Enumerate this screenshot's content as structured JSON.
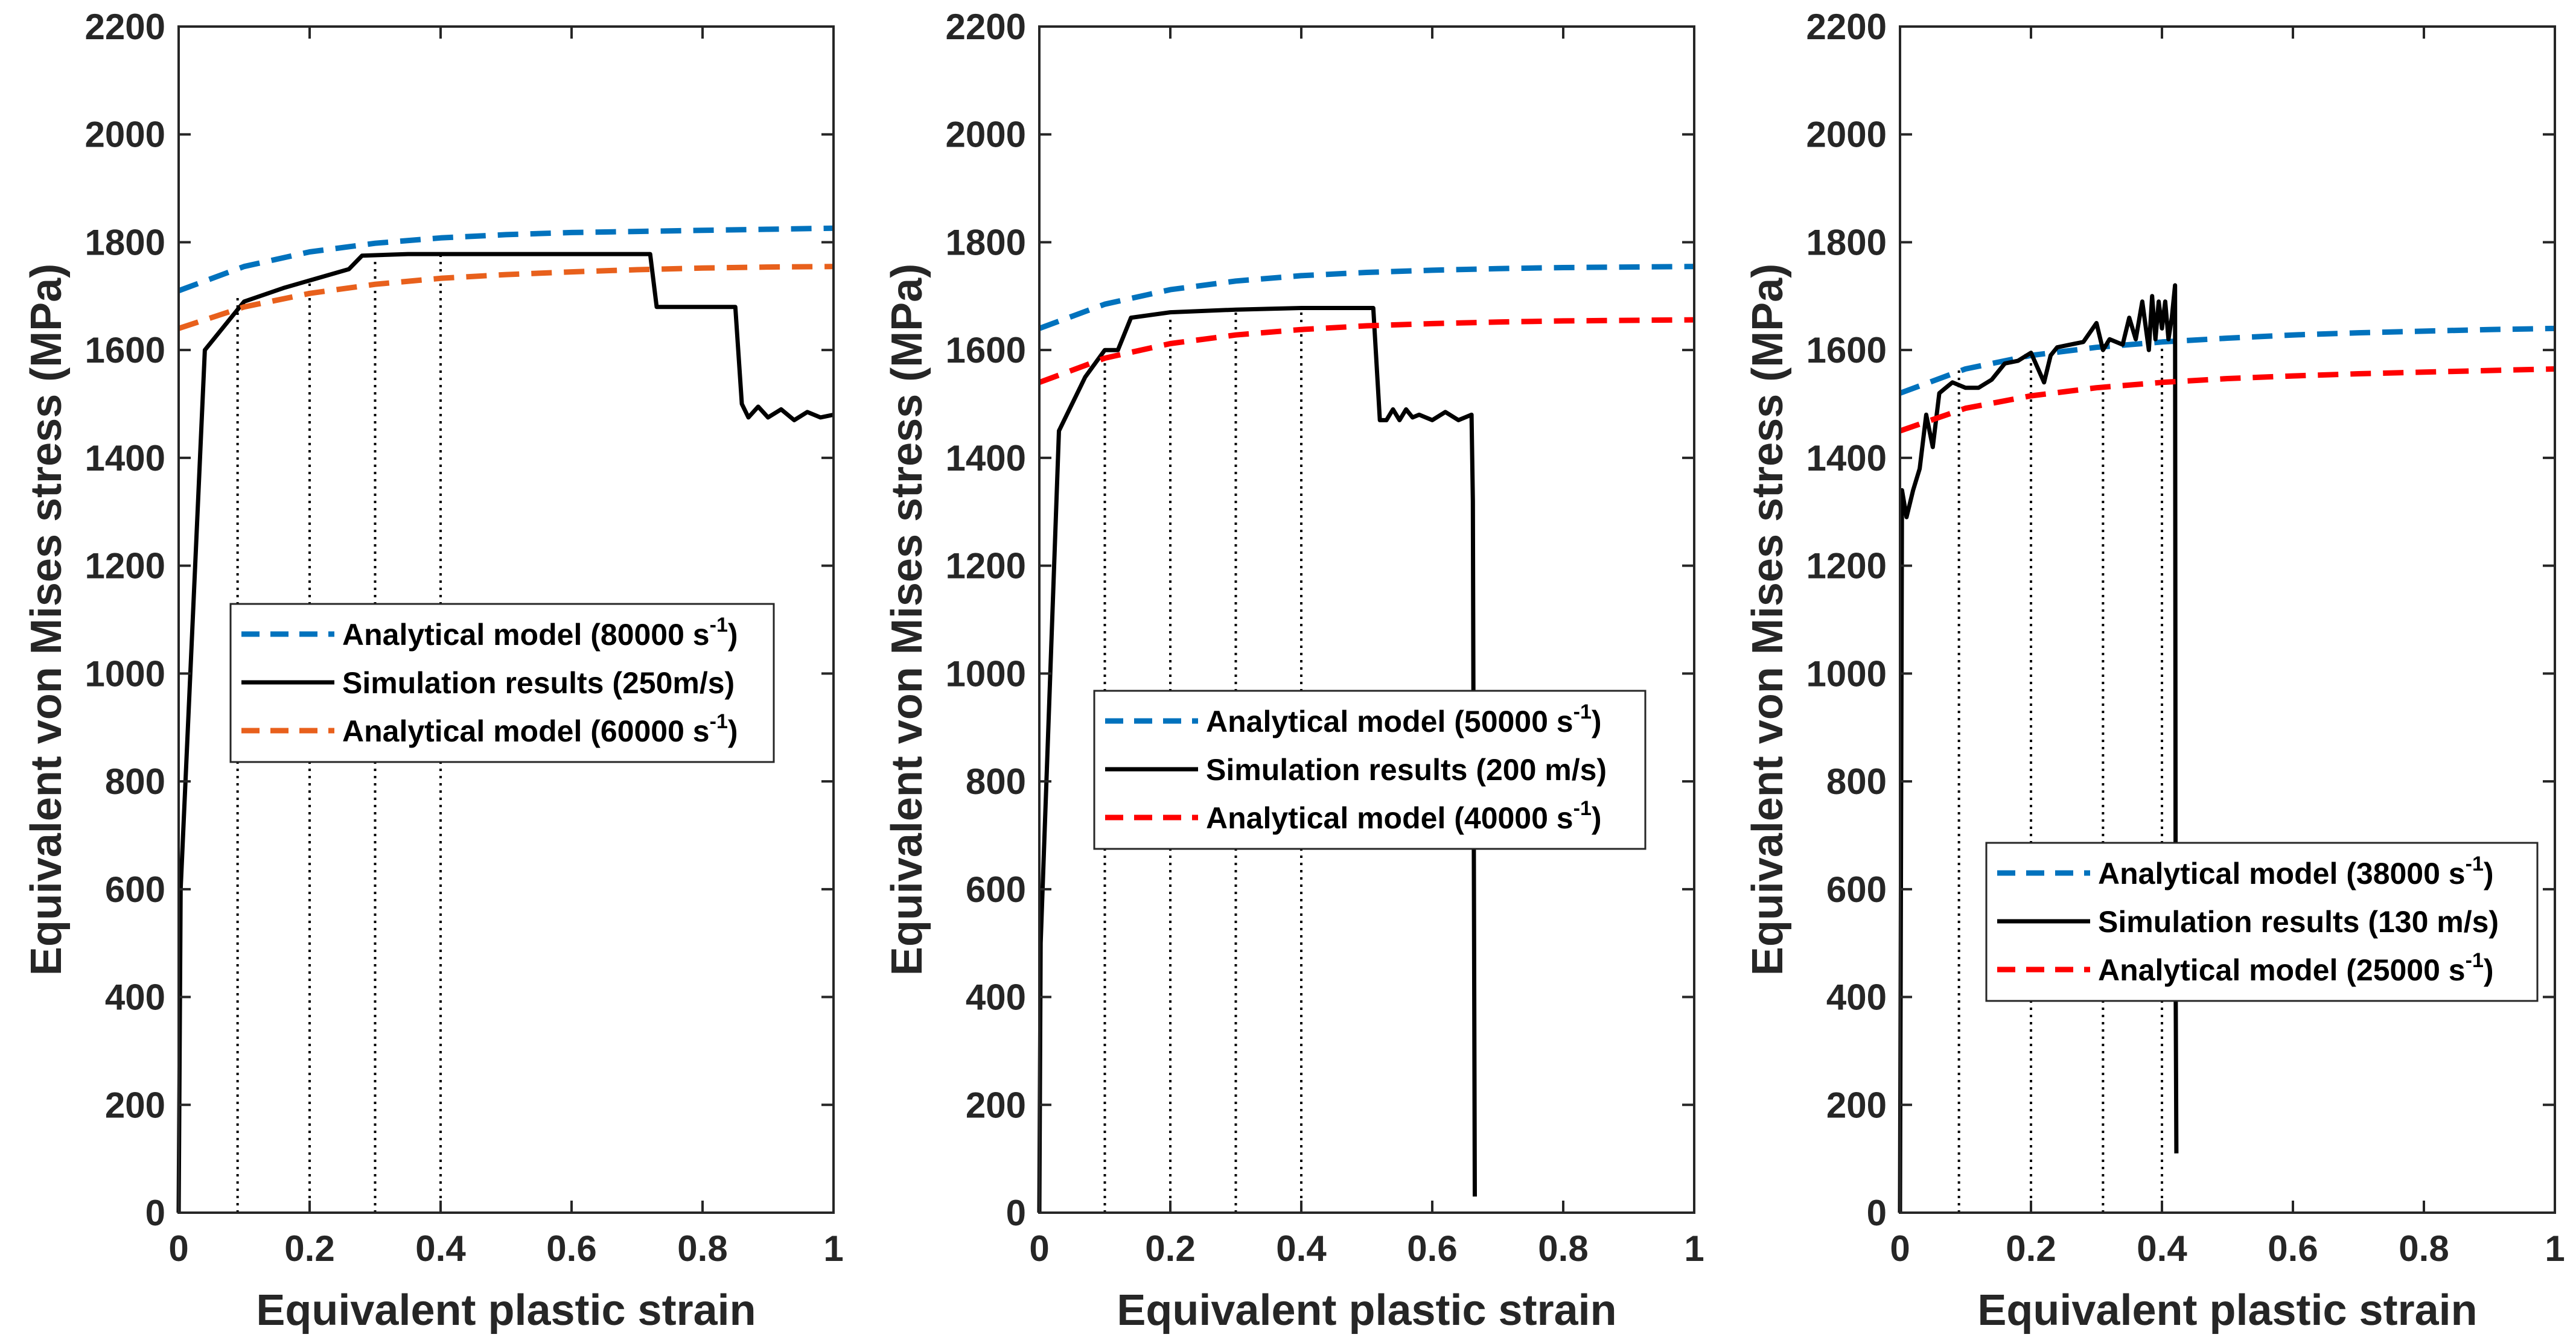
{
  "colors": {
    "blue": "#0072BD",
    "orange": "#E8601C",
    "red": "#FF0000",
    "black": "#000000"
  },
  "chart_data": [
    {
      "type": "line",
      "xlabel": "Equivalent plastic strain",
      "ylabel": "Equivalent von Mises stress (MPa)",
      "xlim": [
        0,
        1
      ],
      "ylim": [
        0,
        2200
      ],
      "xticks": [
        0,
        0.2,
        0.4,
        0.6,
        0.8,
        1
      ],
      "xtick_labels": [
        "0",
        "0.2",
        "0.4",
        "0.6",
        "0.8",
        "1"
      ],
      "yticks": [
        0,
        200,
        400,
        600,
        800,
        1000,
        1200,
        1400,
        1600,
        1800,
        2000,
        2200
      ],
      "ytick_labels": [
        "0",
        "200",
        "400",
        "600",
        "800",
        "1000",
        "1200",
        "1400",
        "1600",
        "1800",
        "2000",
        "2200"
      ],
      "legend_position": "center-left",
      "series": [
        {
          "name": "Analytical model (80000 s",
          "sup": "-1",
          "close": ")",
          "style": "dashed",
          "color": "blue",
          "x": [
            0,
            0.1,
            0.2,
            0.3,
            0.4,
            0.5,
            0.6,
            0.7,
            0.8,
            0.9,
            1.0
          ],
          "y": [
            1710,
            1755,
            1782,
            1798,
            1808,
            1814,
            1818,
            1820,
            1822,
            1824,
            1826
          ]
        },
        {
          "name": "Simulation results (250m/s)",
          "sup": "",
          "close": "",
          "style": "solid",
          "color": "black",
          "x": [
            0,
            0.003,
            0.04,
            0.1,
            0.16,
            0.26,
            0.28,
            0.35,
            0.5,
            0.6,
            0.72,
            0.73,
            0.85,
            0.86,
            0.87,
            0.885,
            0.9,
            0.92,
            0.94,
            0.96,
            0.98,
            1.0
          ],
          "y": [
            0,
            600,
            1600,
            1690,
            1715,
            1750,
            1775,
            1778,
            1778,
            1778,
            1778,
            1680,
            1680,
            1500,
            1475,
            1495,
            1475,
            1490,
            1470,
            1485,
            1475,
            1480
          ]
        },
        {
          "name": "Analytical model (60000 s",
          "sup": "-1",
          "close": ")",
          "style": "dashed",
          "color": "orange",
          "x": [
            0,
            0.1,
            0.2,
            0.3,
            0.4,
            0.5,
            0.6,
            0.7,
            0.8,
            0.9,
            1.0
          ],
          "y": [
            1640,
            1680,
            1705,
            1722,
            1733,
            1740,
            1745,
            1749,
            1752,
            1754,
            1755
          ]
        }
      ],
      "vlines": [
        {
          "x": 0.09,
          "ytop": 1700
        },
        {
          "x": 0.2,
          "ytop": 1730
        },
        {
          "x": 0.3,
          "ytop": 1780
        },
        {
          "x": 0.4,
          "ytop": 1778
        }
      ]
    },
    {
      "type": "line",
      "xlabel": "Equivalent plastic strain",
      "ylabel": "Equivalent von Mises stress (MPa)",
      "xlim": [
        0,
        1
      ],
      "ylim": [
        0,
        2200
      ],
      "xticks": [
        0,
        0.2,
        0.4,
        0.6,
        0.8,
        1
      ],
      "xtick_labels": [
        "0",
        "0.2",
        "0.4",
        "0.6",
        "0.8",
        "1"
      ],
      "yticks": [
        0,
        200,
        400,
        600,
        800,
        1000,
        1200,
        1400,
        1600,
        1800,
        2000,
        2200
      ],
      "ytick_labels": [
        "0",
        "200",
        "400",
        "600",
        "800",
        "1000",
        "1200",
        "1400",
        "1600",
        "1800",
        "2000",
        "2200"
      ],
      "legend_position": "center",
      "series": [
        {
          "name": "Analytical model (50000 s",
          "sup": "-1",
          "close": ")",
          "style": "dashed",
          "color": "blue",
          "x": [
            0,
            0.1,
            0.2,
            0.3,
            0.4,
            0.5,
            0.6,
            0.7,
            0.8,
            0.9,
            1.0
          ],
          "y": [
            1640,
            1685,
            1712,
            1728,
            1738,
            1744,
            1748,
            1751,
            1753,
            1754,
            1755
          ]
        },
        {
          "name": "Simulation results (200 m/s)",
          "sup": "",
          "close": "",
          "style": "solid",
          "color": "black",
          "x": [
            0,
            0.002,
            0.03,
            0.07,
            0.1,
            0.12,
            0.14,
            0.2,
            0.3,
            0.4,
            0.51,
            0.52,
            0.53,
            0.54,
            0.55,
            0.56,
            0.57,
            0.58,
            0.6,
            0.62,
            0.64,
            0.66,
            0.662,
            0.665
          ],
          "y": [
            0,
            500,
            1450,
            1550,
            1600,
            1600,
            1660,
            1670,
            1675,
            1678,
            1678,
            1470,
            1470,
            1490,
            1470,
            1490,
            1475,
            1480,
            1470,
            1485,
            1470,
            1480,
            1320,
            30
          ]
        },
        {
          "name": "Analytical model (40000 s",
          "sup": "-1",
          "close": ")",
          "style": "dashed",
          "color": "red",
          "x": [
            0,
            0.1,
            0.2,
            0.3,
            0.4,
            0.5,
            0.6,
            0.7,
            0.8,
            0.9,
            1.0
          ],
          "y": [
            1540,
            1585,
            1612,
            1628,
            1638,
            1645,
            1649,
            1652,
            1654,
            1655,
            1656
          ]
        }
      ],
      "vlines": [
        {
          "x": 0.1,
          "ytop": 1605
        },
        {
          "x": 0.2,
          "ytop": 1665
        },
        {
          "x": 0.3,
          "ytop": 1672
        },
        {
          "x": 0.4,
          "ytop": 1677
        }
      ]
    },
    {
      "type": "line",
      "xlabel": "Equivalent plastic strain",
      "ylabel": "Equivalent von Mises stress (MPa)",
      "xlim": [
        0,
        1
      ],
      "ylim": [
        0,
        2200
      ],
      "xticks": [
        0,
        0.2,
        0.4,
        0.6,
        0.8,
        1
      ],
      "xtick_labels": [
        "0",
        "0.2",
        "0.4",
        "0.6",
        "0.8",
        "1"
      ],
      "yticks": [
        0,
        200,
        400,
        600,
        800,
        1000,
        1200,
        1400,
        1600,
        1800,
        2000,
        2200
      ],
      "ytick_labels": [
        "0",
        "200",
        "400",
        "600",
        "800",
        "1000",
        "1200",
        "1400",
        "1600",
        "1800",
        "2000",
        "2200"
      ],
      "legend_position": "bottom-right",
      "series": [
        {
          "name": "Analytical model (38000 s",
          "sup": "-1",
          "close": ")",
          "style": "dashed",
          "color": "blue",
          "x": [
            0,
            0.1,
            0.2,
            0.3,
            0.4,
            0.5,
            0.6,
            0.7,
            0.8,
            0.9,
            1.0
          ],
          "y": [
            1520,
            1565,
            1590,
            1605,
            1615,
            1622,
            1628,
            1632,
            1635,
            1638,
            1640
          ]
        },
        {
          "name": "Simulation results (130 m/s)",
          "sup": "",
          "close": "",
          "style": "solid",
          "color": "black",
          "x": [
            0,
            0.003,
            0.01,
            0.02,
            0.03,
            0.04,
            0.05,
            0.06,
            0.07,
            0.08,
            0.1,
            0.12,
            0.14,
            0.16,
            0.18,
            0.2,
            0.22,
            0.23,
            0.24,
            0.26,
            0.28,
            0.3,
            0.31,
            0.32,
            0.34,
            0.35,
            0.36,
            0.37,
            0.38,
            0.385,
            0.39,
            0.395,
            0.4,
            0.405,
            0.41,
            0.415,
            0.42,
            0.421,
            0.422
          ],
          "y": [
            0,
            1340,
            1290,
            1340,
            1380,
            1480,
            1420,
            1520,
            1530,
            1540,
            1530,
            1530,
            1545,
            1575,
            1580,
            1595,
            1540,
            1590,
            1605,
            1610,
            1615,
            1650,
            1600,
            1620,
            1610,
            1660,
            1620,
            1690,
            1600,
            1700,
            1620,
            1690,
            1640,
            1690,
            1620,
            1660,
            1720,
            400,
            110
          ]
        },
        {
          "name": "Analytical model (25000 s",
          "sup": "-1",
          "close": ")",
          "style": "dashed",
          "color": "red",
          "x": [
            0,
            0.1,
            0.2,
            0.3,
            0.4,
            0.5,
            0.6,
            0.7,
            0.8,
            0.9,
            1.0
          ],
          "y": [
            1450,
            1492,
            1515,
            1530,
            1540,
            1547,
            1552,
            1556,
            1559,
            1562,
            1565
          ]
        }
      ],
      "vlines": [
        {
          "x": 0.09,
          "ytop": 1570
        },
        {
          "x": 0.2,
          "ytop": 1590
        },
        {
          "x": 0.31,
          "ytop": 1610
        },
        {
          "x": 0.4,
          "ytop": 1620
        }
      ]
    }
  ]
}
